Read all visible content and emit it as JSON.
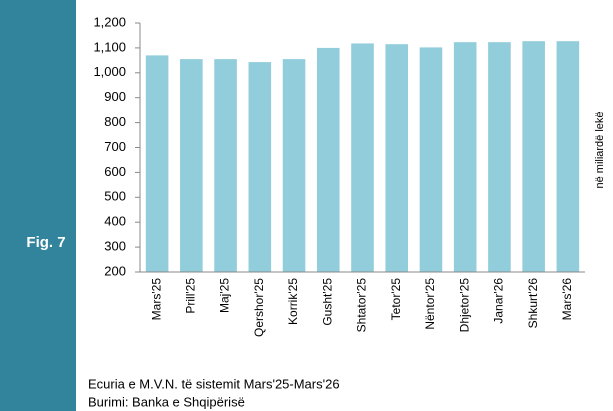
{
  "sidebar": {
    "label": "Fig. 7"
  },
  "chart_data": {
    "type": "bar",
    "categories": [
      "Mars'25",
      "Prill'25",
      "Maj'25",
      "Qershor'25",
      "Korrik'25",
      "Gusht'25",
      "Shtator'25",
      "Tetor'25",
      "Nëntor'25",
      "Dhjetor'25",
      "Janar'26",
      "Shkurt'26",
      "Mars'26"
    ],
    "values": [
      1070,
      1055,
      1055,
      1043,
      1055,
      1100,
      1118,
      1115,
      1102,
      1123,
      1123,
      1127,
      1127
    ],
    "color": "#92cddc",
    "ylim": [
      200,
      1200
    ],
    "yticks": [
      200,
      300,
      400,
      500,
      600,
      700,
      800,
      900,
      {
        "value": 1000,
        "label": "1,000"
      },
      {
        "value": 1100,
        "label": "1,100"
      },
      {
        "value": 1200,
        "label": "1,200"
      }
    ],
    "y_axis_label": "në miliardë lekë",
    "caption": "Ecuria e M.V.N. të sistemit Mars'25-Mars'26",
    "source": "Burimi: Banka e Shqipërisë"
  }
}
